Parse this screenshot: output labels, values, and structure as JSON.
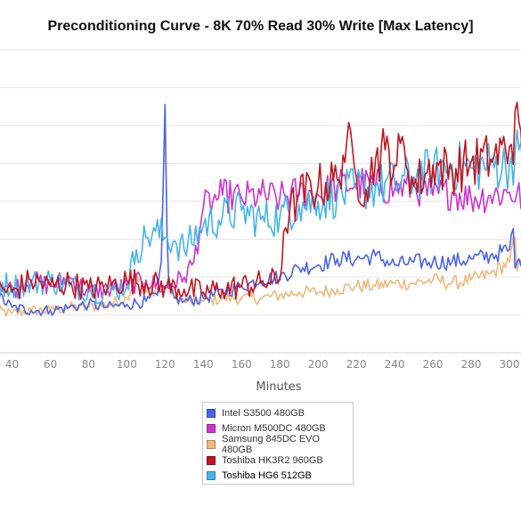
{
  "chart_data": {
    "type": "line",
    "title": "Preconditioning Curve - 8K 70% Read 30% Write [Max Latency]",
    "xlabel": "Minutes",
    "ylabel": "",
    "x_ticks": [
      40,
      60,
      80,
      100,
      120,
      140,
      160,
      180,
      200,
      220,
      240,
      260,
      280,
      300
    ],
    "xlim": [
      30,
      308
    ],
    "ylim": [
      0,
      100
    ],
    "grid": true,
    "legend_position": "bottom",
    "series": [
      {
        "name": "Intel S3500 480GB",
        "color": "#4a63e6",
        "x": [
          30,
          40,
          50,
          60,
          70,
          80,
          90,
          100,
          110,
          116,
          118,
          119,
          120,
          121,
          122,
          125,
          130,
          140,
          150,
          160,
          170,
          180,
          190,
          200,
          210,
          220,
          230,
          240,
          250,
          260,
          270,
          280,
          290,
          300,
          302,
          303,
          305,
          308
        ],
        "values": [
          20,
          15,
          14,
          14,
          15,
          16,
          15,
          16,
          17,
          19,
          30,
          55,
          82,
          40,
          22,
          18,
          17,
          18,
          20,
          22,
          24,
          25,
          28,
          29,
          31,
          31,
          32,
          29,
          30,
          30,
          30,
          31,
          32,
          34,
          41,
          28,
          31,
          32
        ]
      },
      {
        "name": "Micron M500DC 480GB",
        "color": "#cc33cc",
        "x": [
          30,
          40,
          50,
          60,
          70,
          80,
          90,
          100,
          110,
          120,
          130,
          135,
          140,
          145,
          150,
          160,
          170,
          180,
          190,
          200,
          210,
          220,
          230,
          240,
          250,
          260,
          270,
          280,
          290,
          300,
          308
        ],
        "values": [
          25,
          21,
          24,
          22,
          25,
          20,
          21,
          22,
          24,
          21,
          25,
          30,
          48,
          50,
          52,
          51,
          52,
          51,
          53,
          52,
          55,
          56,
          55,
          54,
          55,
          52,
          53,
          51,
          52,
          53,
          51
        ]
      },
      {
        "name": "Samsung 845DC EVO 480GB",
        "color": "#f0b87a",
        "x": [
          30,
          40,
          50,
          60,
          70,
          80,
          90,
          100,
          105,
          110,
          120,
          130,
          140,
          150,
          160,
          170,
          180,
          190,
          200,
          210,
          220,
          230,
          240,
          250,
          260,
          270,
          280,
          290,
          300,
          303,
          304,
          305,
          308
        ],
        "values": [
          14,
          13,
          14,
          14,
          15,
          15,
          16,
          18,
          26,
          20,
          22,
          17,
          17,
          18,
          18,
          18,
          19,
          20,
          20,
          21,
          22,
          22,
          23,
          23,
          24,
          23,
          24,
          26,
          30,
          38,
          27,
          30,
          30
        ]
      },
      {
        "name": "Toshiba HK3R2 960GB",
        "color": "#c0151f",
        "x": [
          30,
          40,
          50,
          60,
          70,
          80,
          90,
          100,
          110,
          120,
          130,
          140,
          150,
          160,
          170,
          180,
          182,
          185,
          190,
          200,
          210,
          215,
          220,
          225,
          230,
          235,
          240,
          245,
          250,
          260,
          270,
          280,
          290,
          300,
          305,
          308
        ],
        "values": [
          22,
          20,
          24,
          22,
          23,
          21,
          22,
          24,
          23,
          22,
          21,
          20,
          21,
          22,
          23,
          24,
          40,
          46,
          52,
          55,
          57,
          70,
          58,
          54,
          64,
          67,
          62,
          68,
          55,
          62,
          60,
          63,
          64,
          68,
          76,
          58
        ]
      },
      {
        "name": "Toshiba HG6 512GB",
        "color": "#46b4ea",
        "x": [
          30,
          40,
          50,
          60,
          70,
          80,
          90,
          100,
          105,
          110,
          115,
          120,
          125,
          130,
          140,
          150,
          160,
          170,
          180,
          190,
          200,
          210,
          220,
          230,
          240,
          250,
          260,
          270,
          280,
          290,
          300,
          305,
          308
        ],
        "values": [
          24,
          22,
          23,
          24,
          22,
          21,
          20,
          22,
          34,
          38,
          40,
          38,
          37,
          34,
          42,
          45,
          47,
          44,
          45,
          49,
          50,
          52,
          54,
          55,
          56,
          58,
          60,
          62,
          61,
          62,
          62,
          67,
          56
        ]
      }
    ]
  }
}
